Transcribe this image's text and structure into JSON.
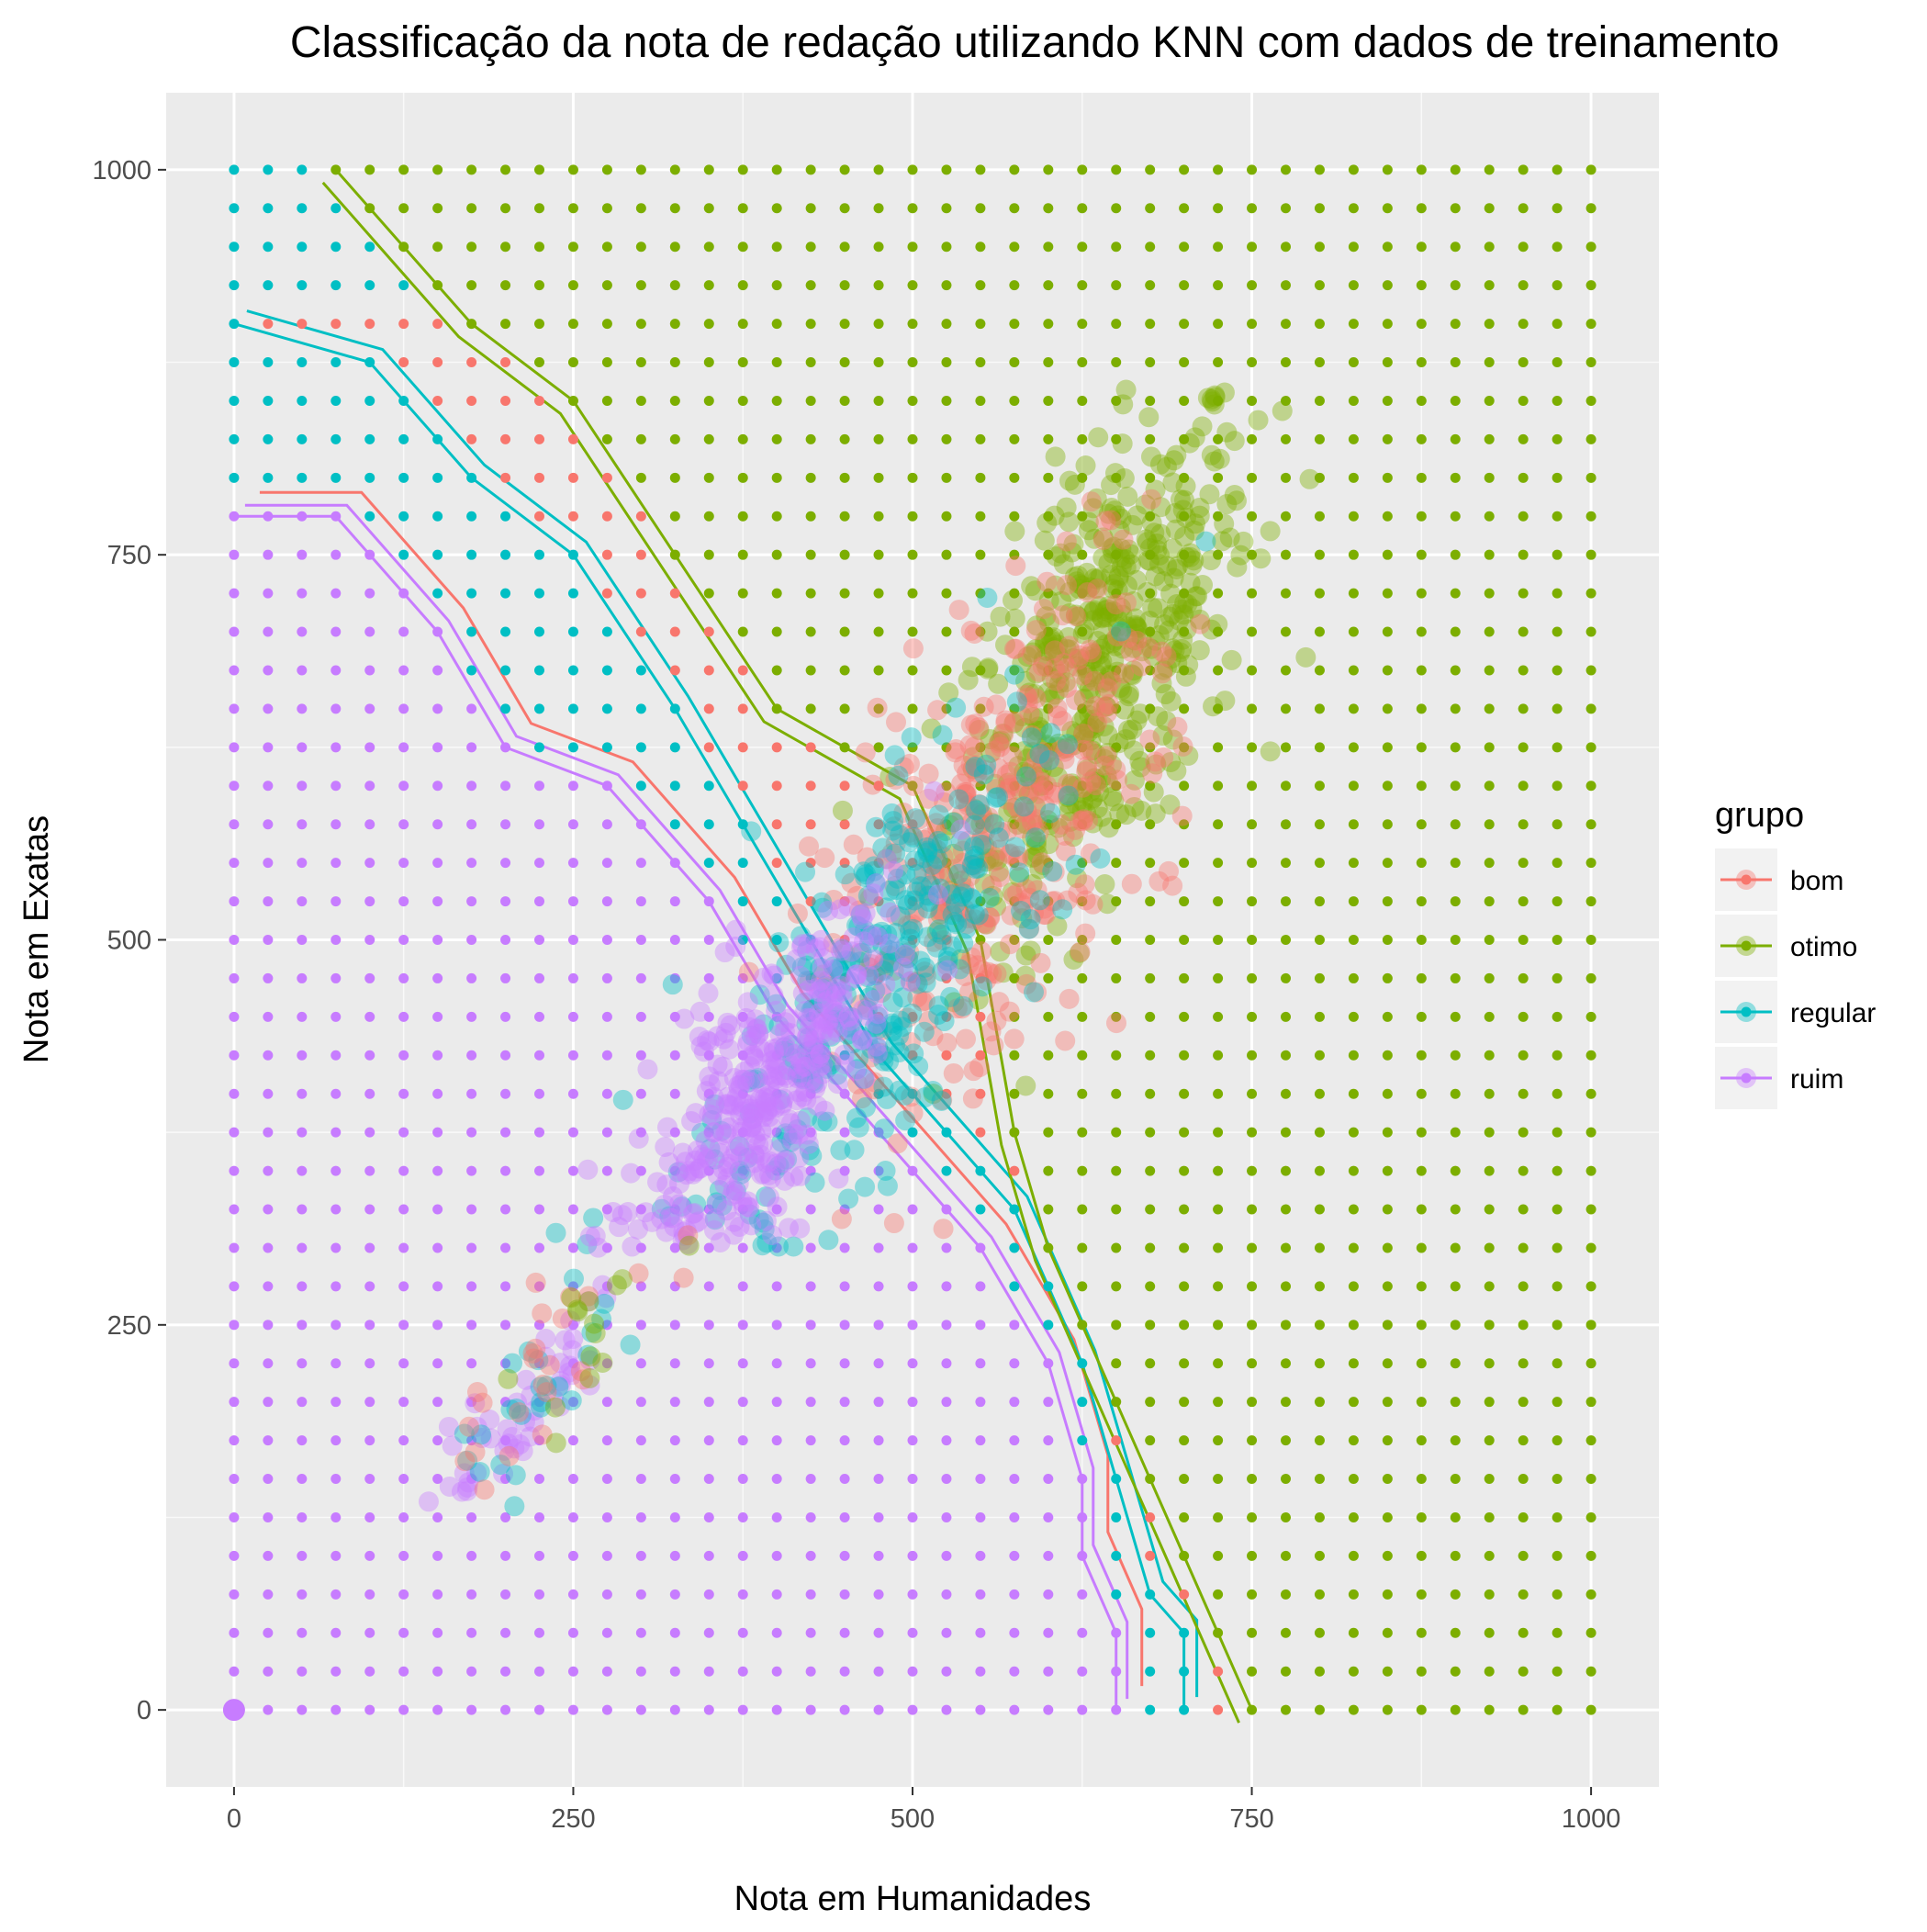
{
  "chart_data": {
    "type": "scatter",
    "title": "Classificação da nota de redação utilizando KNN com dados de treinamento",
    "xlabel": "Nota em Humanidades",
    "ylabel": "Nota em Exatas",
    "xlim": [
      -50,
      1050
    ],
    "ylim": [
      -50,
      1050
    ],
    "x_ticks": [
      0,
      250,
      500,
      750,
      1000
    ],
    "y_ticks": [
      0,
      250,
      500,
      750,
      1000
    ],
    "x_tick_labels": [
      "0",
      "250",
      "500",
      "750",
      "1000"
    ],
    "y_tick_labels": [
      "0",
      "250",
      "500",
      "750",
      "1000"
    ],
    "grid": true,
    "grid_step": 25,
    "legend": {
      "title": "grupo",
      "position": "right",
      "entries": [
        "bom",
        "otimo",
        "regular",
        "ruim"
      ]
    },
    "colors": {
      "bom": "#F8766D",
      "otimo": "#7CAE00",
      "regular": "#00BFC4",
      "ruim": "#C77CFF"
    },
    "panel_background": "#EBEBEB",
    "decision_boundary": {
      "description_points": {
        "ruim_upper_left_edge": [
          [
            0,
            775
          ],
          [
            75,
            775
          ],
          [
            150,
            700
          ],
          [
            200,
            625
          ],
          [
            275,
            600
          ],
          [
            350,
            525
          ],
          [
            400,
            450
          ],
          [
            450,
            400
          ],
          [
            500,
            350
          ],
          [
            550,
            300
          ],
          [
            600,
            225
          ],
          [
            625,
            150
          ],
          [
            625,
            100
          ],
          [
            650,
            50
          ],
          [
            650,
            0
          ]
        ],
        "regular_upper_left_edge": [
          [
            0,
            900
          ],
          [
            100,
            875
          ],
          [
            175,
            800
          ],
          [
            250,
            750
          ],
          [
            325,
            650
          ],
          [
            375,
            575
          ],
          [
            425,
            500
          ],
          [
            475,
            425
          ],
          [
            525,
            375
          ],
          [
            575,
            325
          ],
          [
            625,
            225
          ],
          [
            650,
            150
          ],
          [
            675,
            75
          ],
          [
            700,
            50
          ],
          [
            700,
            0
          ]
        ],
        "otimo_lower_right_edge": [
          [
            75,
            1000
          ],
          [
            175,
            900
          ],
          [
            250,
            850
          ],
          [
            325,
            750
          ],
          [
            400,
            650
          ],
          [
            450,
            625
          ],
          [
            500,
            600
          ],
          [
            550,
            500
          ],
          [
            575,
            375
          ],
          [
            600,
            300
          ],
          [
            650,
            200
          ],
          [
            675,
            150
          ],
          [
            700,
            100
          ],
          [
            725,
            50
          ],
          [
            750,
            0
          ]
        ]
      }
    },
    "training_clusters": [
      {
        "group": "otimo",
        "center": [
          640,
          680
        ],
        "spread": [
          55,
          110
        ],
        "count": 520
      },
      {
        "group": "bom",
        "center": [
          560,
          560
        ],
        "spread": [
          65,
          110
        ],
        "count": 380
      },
      {
        "group": "regular",
        "center": [
          470,
          470
        ],
        "spread": [
          70,
          90
        ],
        "count": 330
      },
      {
        "group": "ruim",
        "center": [
          390,
          400
        ],
        "spread": [
          50,
          70
        ],
        "count": 380
      },
      {
        "group": "ruim",
        "center": [
          210,
          190
        ],
        "spread": [
          35,
          35
        ],
        "count": 55
      },
      {
        "group": "regular",
        "center": [
          220,
          200
        ],
        "spread": [
          30,
          35
        ],
        "count": 25
      },
      {
        "group": "bom",
        "center": [
          235,
          230
        ],
        "spread": [
          35,
          45
        ],
        "count": 25
      },
      {
        "group": "otimo",
        "center": [
          260,
          250
        ],
        "spread": [
          30,
          40
        ],
        "count": 15
      }
    ],
    "highlight_point": {
      "group": "ruim",
      "x": 0,
      "y": 0
    }
  }
}
